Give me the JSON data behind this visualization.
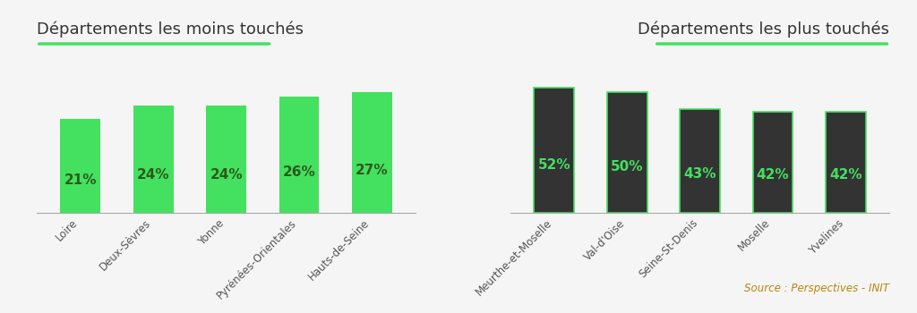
{
  "left_title": "Départements les moins touchés",
  "right_title": "Départements les plus touchés",
  "source_text": "Source : Perspectives - INIT",
  "left_categories": [
    "Loire",
    "Deux-Sèvres",
    "Yonne",
    "Pyrénées-Orientales",
    "Hauts-de-Seine"
  ],
  "left_values": [
    21,
    24,
    24,
    26,
    27
  ],
  "right_categories": [
    "Meurthe-et-Moselle",
    "Val-d'Oise",
    "Seine-St-Denis",
    "Moselle",
    "Yvelines"
  ],
  "right_values": [
    52,
    50,
    43,
    42,
    42
  ],
  "left_bar_color": "#44e060",
  "right_bar_color": "#333333",
  "left_text_color": "#2d5a1b",
  "right_text_color": "#44e060",
  "title_color": "#333333",
  "source_color": "#b8860b",
  "underline_color": "#44e060",
  "bg_color": "#f5f5f5",
  "left_ylim": [
    0,
    35
  ],
  "right_ylim": [
    0,
    65
  ],
  "bar_width": 0.55,
  "label_fontsize": 11,
  "title_fontsize": 13,
  "tick_fontsize": 8.5
}
